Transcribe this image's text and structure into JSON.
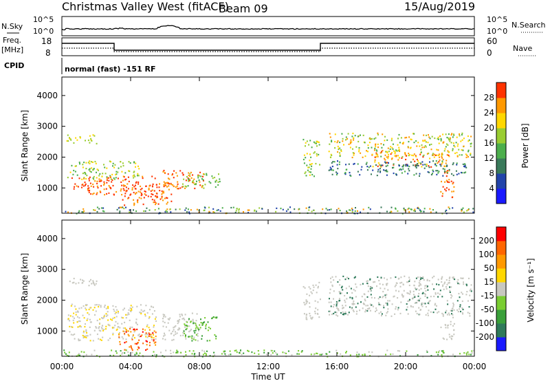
{
  "header": {
    "station": "Christmas Valley West (fitACF)",
    "beam": "Beam 09",
    "date": "15/Aug/2019"
  },
  "top_panels": {
    "nsky_label": "N.Sky",
    "nsearch_label": "N.Search",
    "noise_ticks": [
      "10^5",
      "10^0"
    ],
    "freq_label_1": "Freq.",
    "freq_label_2": "[MHz]",
    "freq_ticks": [
      "18",
      "8"
    ],
    "nave_label": "Nave",
    "nave_ticks": [
      "60",
      "0"
    ],
    "cpid_label": "CPID",
    "cpid_text": "normal (fast) -151 RF"
  },
  "chart_data": [
    {
      "type": "heatmap",
      "panel": "power",
      "ylabel": "Slant Range [km]",
      "xlabel": "",
      "y_ticks": [
        1000,
        2000,
        3000,
        4000
      ],
      "ylim": [
        180,
        4600
      ],
      "colorbar_label": "Power [dB]",
      "colorbar_ticks": [
        "4",
        "8",
        "12",
        "16",
        "20",
        "24",
        "28"
      ],
      "colors": [
        "#1a1aff",
        "#2244aa",
        "#3a7a5a",
        "#4cae4c",
        "#9acd32",
        "#ffd700",
        "#ff9900",
        "#ff3300"
      ]
    },
    {
      "type": "heatmap",
      "panel": "velocity",
      "ylabel": "Slant Range [km]",
      "xlabel": "Time UT",
      "y_ticks": [
        1000,
        2000,
        3000,
        4000
      ],
      "ylim": [
        180,
        4600
      ],
      "x_ticks": [
        "00:00",
        "04:00",
        "08:00",
        "12:00",
        "16:00",
        "20:00",
        "00:00"
      ],
      "colorbar_label": "Velocity [m s⁻¹]",
      "colorbar_ticks": [
        "200",
        "100",
        "50",
        "15",
        "-15",
        "-50",
        "-100",
        "-200"
      ],
      "colors": [
        "#1a1aff",
        "#2f7a5a",
        "#3aa03a",
        "#7acd32",
        "#c8c8c0",
        "#ffd700",
        "#ff9900",
        "#ff6600",
        "#ff0000"
      ]
    }
  ],
  "scatter_regions_power": [
    {
      "t0": 0.2,
      "t1": 2.0,
      "r0": 2450,
      "r1": 2750,
      "c": [
        5,
        4
      ]
    },
    {
      "t0": 0.3,
      "t1": 4.5,
      "r0": 1300,
      "r1": 1900,
      "c": [
        3,
        4,
        5
      ]
    },
    {
      "t0": 0.5,
      "t1": 5.5,
      "r0": 800,
      "r1": 1400,
      "c": [
        7,
        6,
        7
      ]
    },
    {
      "t0": 3.5,
      "t1": 6.5,
      "r0": 450,
      "r1": 1200,
      "c": [
        7,
        7,
        6
      ]
    },
    {
      "t0": 5.8,
      "t1": 8.2,
      "r0": 1000,
      "r1": 1600,
      "c": [
        6,
        7
      ]
    },
    {
      "t0": 7.0,
      "t1": 9.2,
      "r0": 1000,
      "r1": 1500,
      "c": [
        3,
        4
      ]
    },
    {
      "t0": 0.0,
      "t1": 24.0,
      "r0": 190,
      "r1": 400,
      "c": [
        1,
        2,
        3,
        4,
        6
      ]
    },
    {
      "t0": 14.0,
      "t1": 15.0,
      "r0": 1400,
      "r1": 2600,
      "c": [
        3,
        4,
        5
      ]
    },
    {
      "t0": 15.5,
      "t1": 23.8,
      "r0": 2000,
      "r1": 2800,
      "c": [
        3,
        4,
        5,
        6
      ]
    },
    {
      "t0": 18.0,
      "t1": 22.5,
      "r0": 1700,
      "r1": 2200,
      "c": [
        5,
        6,
        7
      ]
    },
    {
      "t0": 22.0,
      "t1": 22.8,
      "r0": 700,
      "r1": 1600,
      "c": [
        6,
        7
      ]
    },
    {
      "t0": 15.5,
      "t1": 23.5,
      "r0": 1400,
      "r1": 1900,
      "c": [
        1,
        2,
        3
      ]
    }
  ],
  "scatter_regions_vel": [
    {
      "t0": 0.2,
      "t1": 2.0,
      "r0": 2450,
      "r1": 2750,
      "c": [
        4
      ]
    },
    {
      "t0": 0.3,
      "t1": 5.5,
      "r0": 700,
      "r1": 1900,
      "c": [
        4,
        4,
        4,
        5
      ]
    },
    {
      "t0": 3.2,
      "t1": 5.5,
      "r0": 400,
      "r1": 1100,
      "c": [
        6,
        7,
        8
      ]
    },
    {
      "t0": 5.8,
      "t1": 8.0,
      "r0": 700,
      "r1": 1600,
      "c": [
        4,
        4
      ]
    },
    {
      "t0": 7.0,
      "t1": 9.0,
      "r0": 700,
      "r1": 1500,
      "c": [
        2,
        3
      ]
    },
    {
      "t0": 0.0,
      "t1": 24.0,
      "r0": 190,
      "r1": 400,
      "c": [
        2,
        3,
        3,
        4
      ]
    },
    {
      "t0": 14.0,
      "t1": 15.0,
      "r0": 1400,
      "r1": 2600,
      "c": [
        4
      ]
    },
    {
      "t0": 15.5,
      "t1": 23.8,
      "r0": 1500,
      "r1": 2800,
      "c": [
        4,
        4,
        4,
        1
      ]
    },
    {
      "t0": 22.0,
      "t1": 22.8,
      "r0": 700,
      "r1": 1600,
      "c": [
        4
      ]
    }
  ]
}
